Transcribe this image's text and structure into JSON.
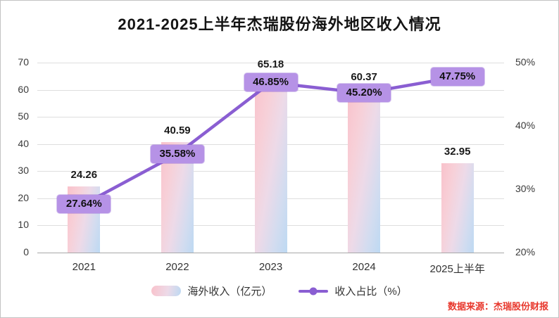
{
  "title": "2021-2025上半年杰瑞股份海外地区收入情况",
  "source": "数据来源：杰瑞股份财报",
  "legend": {
    "bar": "海外收入（亿元）",
    "line": "收入占比（%）"
  },
  "colors": {
    "line": "#8a5ed2",
    "marker": "#7b4fc6",
    "label_box": "#b692e6",
    "source_text": "#e8372c",
    "grid": "#dedede"
  },
  "chart_data": {
    "type": "combo-bar-line",
    "title": "2021-2025上半年杰瑞股份海外地区收入情况",
    "categories": [
      "2021",
      "2022",
      "2023",
      "2024",
      "2025上半年"
    ],
    "series": [
      {
        "name": "海外收入（亿元）",
        "type": "bar",
        "axis": "left",
        "values": [
          24.26,
          40.59,
          65.18,
          60.37,
          32.95
        ]
      },
      {
        "name": "收入占比（%）",
        "type": "line",
        "axis": "right",
        "values": [
          27.64,
          35.58,
          46.85,
          45.2,
          47.75
        ]
      }
    ],
    "bar_labels": [
      "24.26",
      "40.59",
      "65.18",
      "60.37",
      "32.95"
    ],
    "line_labels": [
      "27.64%",
      "35.58%",
      "46.85%",
      "45.20%",
      "47.75%"
    ],
    "left_axis": {
      "min": 0,
      "max": 70,
      "step": 10,
      "ticks": [
        "0",
        "10",
        "20",
        "30",
        "40",
        "50",
        "60",
        "70"
      ]
    },
    "right_axis": {
      "min": 20,
      "max": 50,
      "step": 10,
      "ticks": [
        "20%",
        "30%",
        "40%",
        "50%"
      ]
    },
    "grid": true,
    "legend_position": "bottom"
  }
}
